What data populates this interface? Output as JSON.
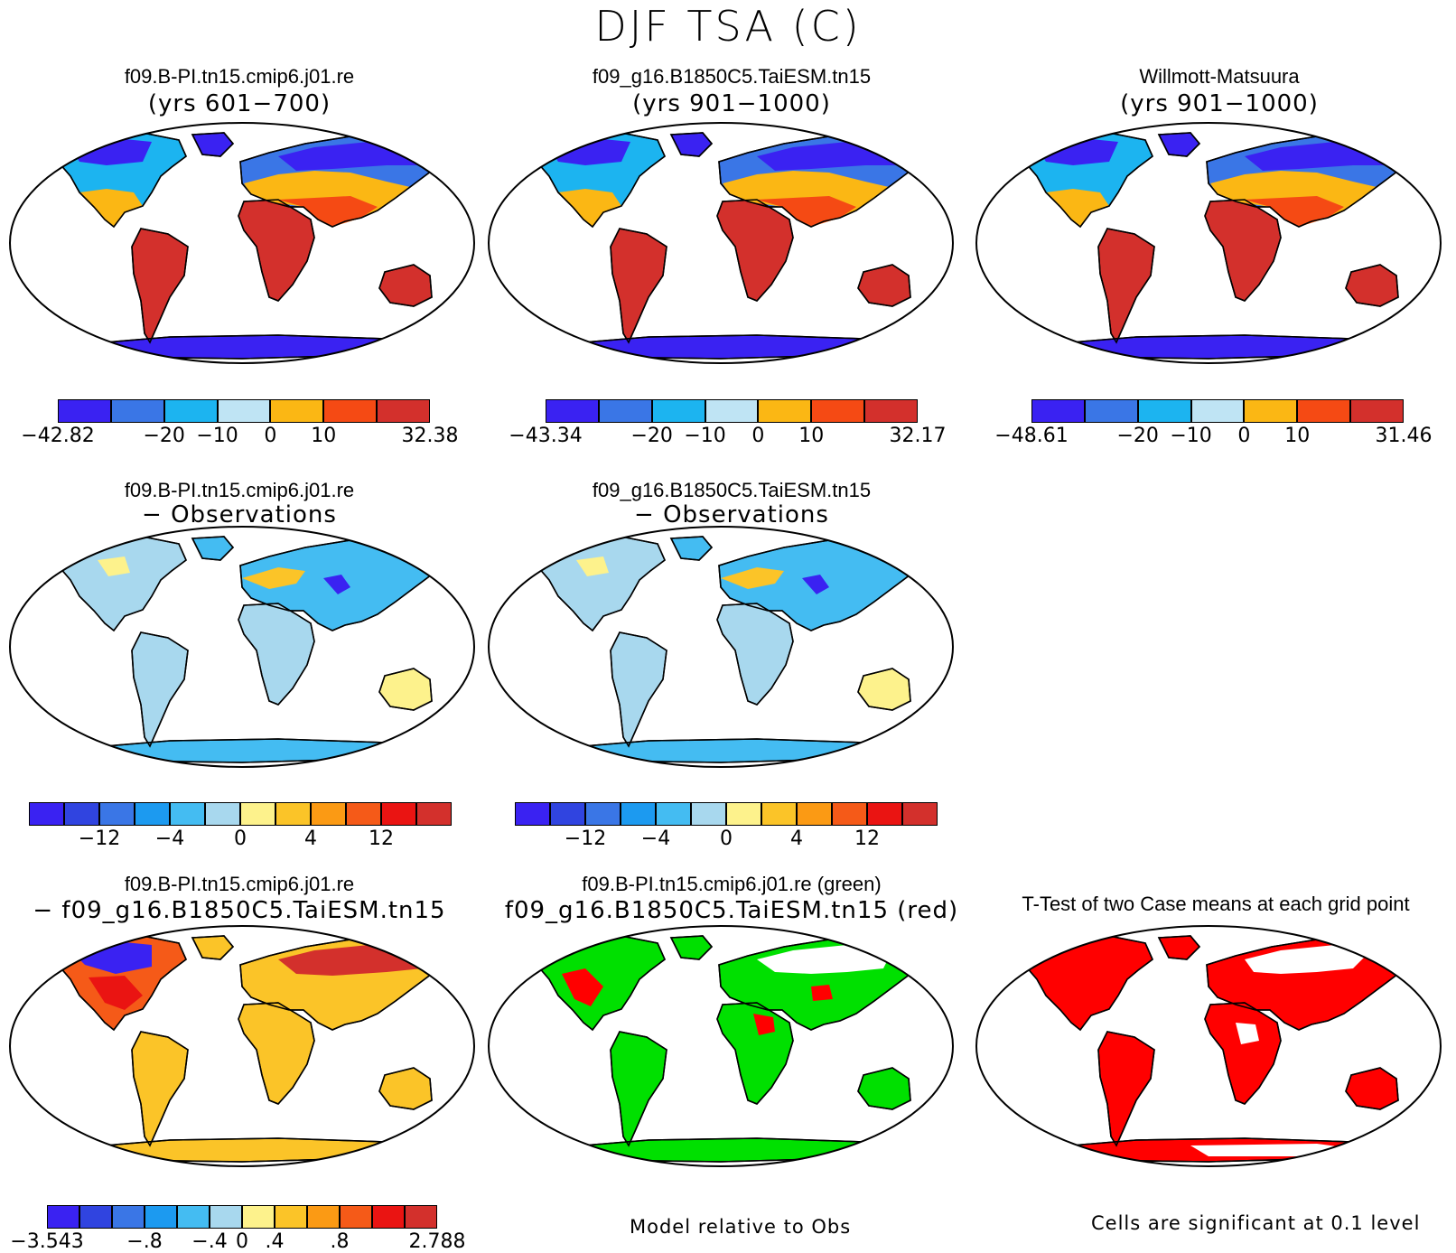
{
  "main_title": "DJF TSA (C)",
  "panels": [
    {
      "id": "p1",
      "title": "f09.B-PI.tn15.cmip6.j01.re",
      "subtitle": "(yrs 601−700)",
      "style": "temp"
    },
    {
      "id": "p2",
      "title": "f09_g16.B1850C5.TaiESM.tn15",
      "subtitle": "(yrs 901−1000)",
      "style": "temp"
    },
    {
      "id": "p3",
      "title": "Willmott-Matsuura",
      "subtitle": "(yrs 901−1000)",
      "style": "temp"
    },
    {
      "id": "p4",
      "title": "f09.B-PI.tn15.cmip6.j01.re",
      "subtitle": "− Observations",
      "style": "bias"
    },
    {
      "id": "p5",
      "title": "f09_g16.B1850C5.TaiESM.tn15",
      "subtitle": "− Observations",
      "style": "bias"
    },
    {
      "id": "p6",
      "title": "f09.B-PI.tn15.cmip6.j01.re",
      "subtitle": "− f09_g16.B1850C5.TaiESM.tn15",
      "style": "diff"
    },
    {
      "id": "p7",
      "title": "f09.B-PI.tn15.cmip6.j01.re (green)",
      "subtitle": "f09_g16.B1850C5.TaiESM.tn15 (red)",
      "style": "greenred"
    },
    {
      "id": "p8",
      "title": "T-Test of two Case means at each grid point",
      "subtitle": "",
      "style": "ttest"
    }
  ],
  "colorbars": [
    {
      "id": "cb1",
      "colors": [
        "#3a22f2",
        "#3a76e6",
        "#1cb4f0",
        "#bfe4f4",
        "#fbb714",
        "#f54a14",
        "#d3302c"
      ],
      "labels": [
        "−42.82",
        "−20",
        "−10",
        "0",
        "10",
        "32.38"
      ]
    },
    {
      "id": "cb2",
      "colors": [
        "#3a22f2",
        "#3a76e6",
        "#1cb4f0",
        "#bfe4f4",
        "#fbb714",
        "#f54a14",
        "#d3302c"
      ],
      "labels": [
        "−43.34",
        "−20",
        "−10",
        "0",
        "10",
        "32.17"
      ]
    },
    {
      "id": "cb3",
      "colors": [
        "#3a22f2",
        "#3a76e6",
        "#1cb4f0",
        "#bfe4f4",
        "#fbb714",
        "#f54a14",
        "#d3302c"
      ],
      "labels": [
        "−48.61",
        "−20",
        "−10",
        "0",
        "10",
        "31.46"
      ]
    },
    {
      "id": "cb4",
      "colors": [
        "#3a22f2",
        "#3044e0",
        "#3a76e6",
        "#1c9af0",
        "#44bcf2",
        "#a8d8ee",
        "#fdf28c",
        "#fbc428",
        "#fb9a14",
        "#f55a18",
        "#ea1412",
        "#d3302c"
      ],
      "labels": [
        "−12",
        "−4",
        "0",
        "4",
        "12"
      ]
    },
    {
      "id": "cb5",
      "colors": [
        "#3a22f2",
        "#3044e0",
        "#3a76e6",
        "#1c9af0",
        "#44bcf2",
        "#a8d8ee",
        "#fdf28c",
        "#fbc428",
        "#fb9a14",
        "#f55a18",
        "#ea1412",
        "#d3302c"
      ],
      "labels": [
        "−12",
        "−4",
        "0",
        "4",
        "12"
      ]
    },
    {
      "id": "cb6",
      "colors": [
        "#3a22f2",
        "#3044e0",
        "#3a76e6",
        "#1c9af0",
        "#44bcf2",
        "#a8d8ee",
        "#fdf28c",
        "#fbc428",
        "#fb9a14",
        "#f55a18",
        "#ea1412",
        "#d3302c"
      ],
      "labels": [
        "−3.543",
        "−.8",
        "−.4",
        "0",
        ".4",
        ".8",
        "2.788"
      ]
    }
  ],
  "footnotes": {
    "model_relative": "Model relative to Obs",
    "significance": "Cells are significant at 0.1 level"
  },
  "legend_colors": {
    "green": "#00e000",
    "red": "#ff0000"
  }
}
